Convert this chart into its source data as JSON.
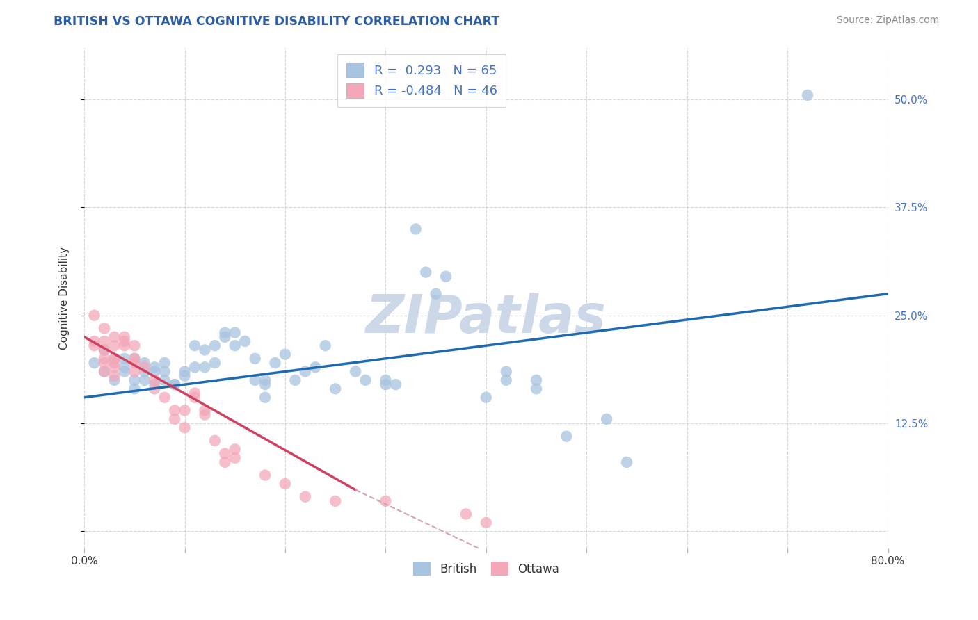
{
  "title": "BRITISH VS OTTAWA COGNITIVE DISABILITY CORRELATION CHART",
  "source": "Source: ZipAtlas.com",
  "ylabel": "Cognitive Disability",
  "xlim": [
    0.0,
    0.8
  ],
  "ylim": [
    -0.02,
    0.56
  ],
  "xticks": [
    0.0,
    0.1,
    0.2,
    0.3,
    0.4,
    0.5,
    0.6,
    0.7,
    0.8
  ],
  "yticks_right": [
    0.0,
    0.125,
    0.25,
    0.375,
    0.5
  ],
  "ytick_right_labels": [
    "",
    "12.5%",
    "25.0%",
    "37.5%",
    "50.0%"
  ],
  "british_color": "#a8c4e0",
  "ottawa_color": "#f4a7b9",
  "british_line_color": "#1e6ab0",
  "ottawa_line_color": "#d04060",
  "ottawa_dash_color": "#d8a0b0",
  "british_R": 0.293,
  "british_N": 65,
  "ottawa_R": -0.484,
  "ottawa_N": 46,
  "british_scatter": [
    [
      0.01,
      0.195
    ],
    [
      0.02,
      0.21
    ],
    [
      0.02,
      0.185
    ],
    [
      0.03,
      0.2
    ],
    [
      0.03,
      0.175
    ],
    [
      0.04,
      0.19
    ],
    [
      0.04,
      0.2
    ],
    [
      0.04,
      0.185
    ],
    [
      0.05,
      0.2
    ],
    [
      0.05,
      0.175
    ],
    [
      0.05,
      0.165
    ],
    [
      0.06,
      0.185
    ],
    [
      0.06,
      0.195
    ],
    [
      0.06,
      0.175
    ],
    [
      0.07,
      0.185
    ],
    [
      0.07,
      0.19
    ],
    [
      0.07,
      0.17
    ],
    [
      0.08,
      0.195
    ],
    [
      0.08,
      0.175
    ],
    [
      0.08,
      0.185
    ],
    [
      0.09,
      0.17
    ],
    [
      0.09,
      0.17
    ],
    [
      0.1,
      0.18
    ],
    [
      0.1,
      0.185
    ],
    [
      0.11,
      0.19
    ],
    [
      0.11,
      0.215
    ],
    [
      0.12,
      0.21
    ],
    [
      0.12,
      0.19
    ],
    [
      0.13,
      0.215
    ],
    [
      0.13,
      0.195
    ],
    [
      0.14,
      0.23
    ],
    [
      0.14,
      0.225
    ],
    [
      0.15,
      0.215
    ],
    [
      0.15,
      0.23
    ],
    [
      0.16,
      0.22
    ],
    [
      0.17,
      0.2
    ],
    [
      0.17,
      0.175
    ],
    [
      0.18,
      0.175
    ],
    [
      0.18,
      0.155
    ],
    [
      0.18,
      0.17
    ],
    [
      0.19,
      0.195
    ],
    [
      0.2,
      0.205
    ],
    [
      0.21,
      0.175
    ],
    [
      0.22,
      0.185
    ],
    [
      0.23,
      0.19
    ],
    [
      0.24,
      0.215
    ],
    [
      0.25,
      0.165
    ],
    [
      0.27,
      0.185
    ],
    [
      0.28,
      0.175
    ],
    [
      0.3,
      0.17
    ],
    [
      0.3,
      0.175
    ],
    [
      0.31,
      0.17
    ],
    [
      0.33,
      0.35
    ],
    [
      0.34,
      0.3
    ],
    [
      0.35,
      0.275
    ],
    [
      0.36,
      0.295
    ],
    [
      0.4,
      0.155
    ],
    [
      0.42,
      0.185
    ],
    [
      0.42,
      0.175
    ],
    [
      0.45,
      0.165
    ],
    [
      0.45,
      0.175
    ],
    [
      0.48,
      0.11
    ],
    [
      0.52,
      0.13
    ],
    [
      0.54,
      0.08
    ],
    [
      0.72,
      0.505
    ]
  ],
  "ottawa_scatter": [
    [
      0.01,
      0.25
    ],
    [
      0.01,
      0.22
    ],
    [
      0.01,
      0.215
    ],
    [
      0.02,
      0.235
    ],
    [
      0.02,
      0.22
    ],
    [
      0.02,
      0.21
    ],
    [
      0.02,
      0.2
    ],
    [
      0.02,
      0.195
    ],
    [
      0.02,
      0.185
    ],
    [
      0.03,
      0.225
    ],
    [
      0.03,
      0.215
    ],
    [
      0.03,
      0.2
    ],
    [
      0.03,
      0.195
    ],
    [
      0.03,
      0.19
    ],
    [
      0.03,
      0.18
    ],
    [
      0.04,
      0.215
    ],
    [
      0.04,
      0.225
    ],
    [
      0.04,
      0.22
    ],
    [
      0.05,
      0.215
    ],
    [
      0.05,
      0.2
    ],
    [
      0.05,
      0.195
    ],
    [
      0.05,
      0.185
    ],
    [
      0.06,
      0.19
    ],
    [
      0.07,
      0.175
    ],
    [
      0.07,
      0.165
    ],
    [
      0.08,
      0.155
    ],
    [
      0.09,
      0.14
    ],
    [
      0.09,
      0.13
    ],
    [
      0.1,
      0.14
    ],
    [
      0.1,
      0.12
    ],
    [
      0.11,
      0.155
    ],
    [
      0.11,
      0.16
    ],
    [
      0.12,
      0.14
    ],
    [
      0.12,
      0.135
    ],
    [
      0.13,
      0.105
    ],
    [
      0.14,
      0.09
    ],
    [
      0.14,
      0.08
    ],
    [
      0.15,
      0.095
    ],
    [
      0.15,
      0.085
    ],
    [
      0.18,
      0.065
    ],
    [
      0.2,
      0.055
    ],
    [
      0.22,
      0.04
    ],
    [
      0.25,
      0.035
    ],
    [
      0.3,
      0.035
    ],
    [
      0.38,
      0.02
    ],
    [
      0.4,
      0.01
    ]
  ],
  "watermark": "ZIPatlas",
  "watermark_color": "#ccd8e8",
  "background_color": "#ffffff",
  "grid_color": "#cccccc",
  "title_color": "#2b5ea7",
  "source_color": "#888888",
  "legend_text_color": "#4472c4",
  "legend_label_color": "#333333"
}
